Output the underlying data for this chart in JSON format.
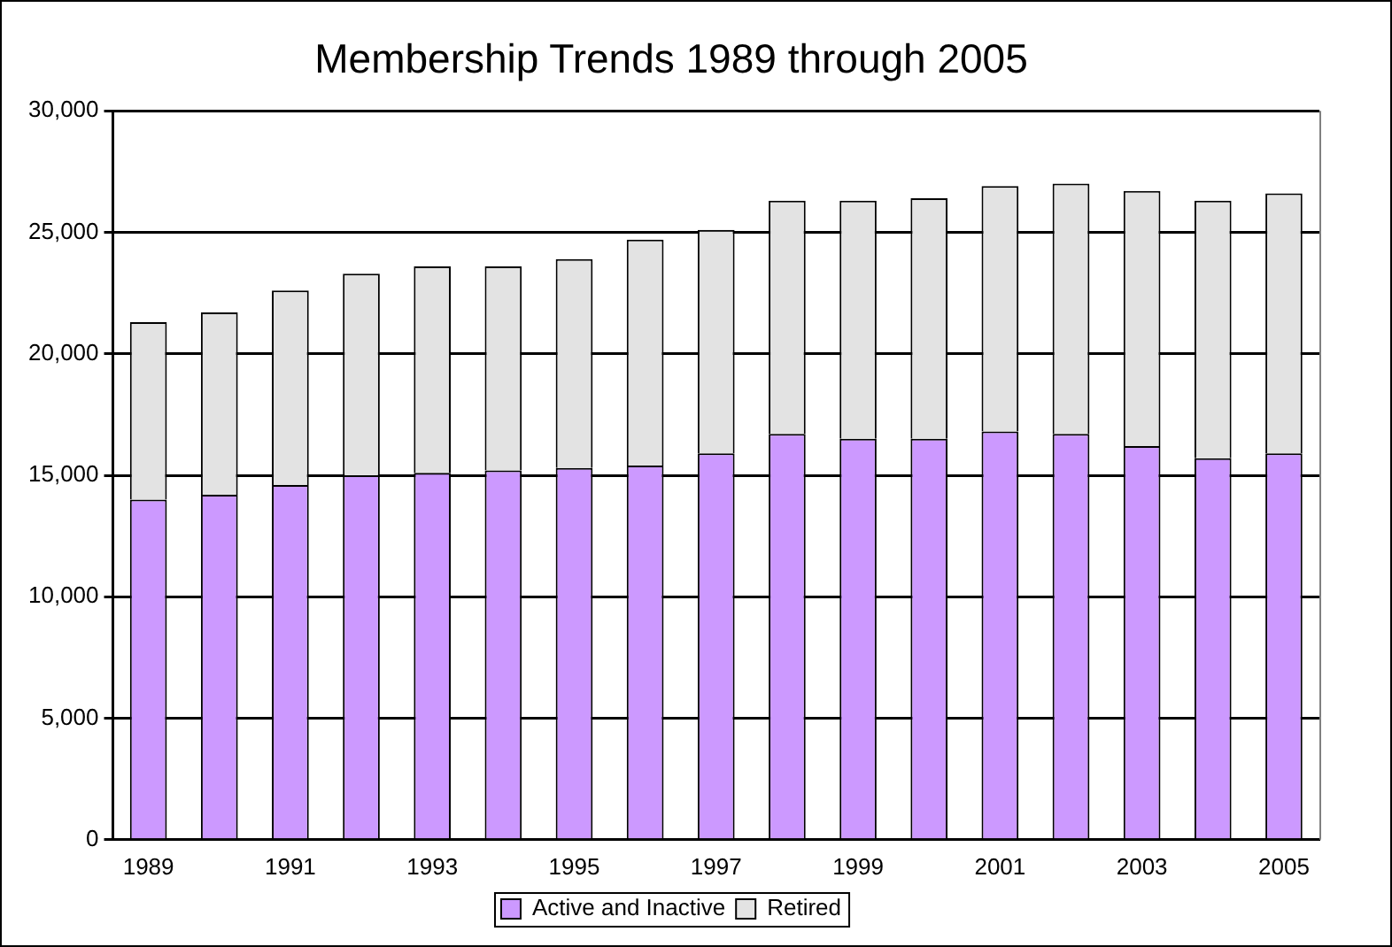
{
  "chart_data": {
    "type": "bar",
    "title": "Membership Trends 1989 through 2005",
    "stacked": true,
    "categories": [
      "1989",
      null,
      "1991",
      null,
      "1993",
      null,
      "1995",
      null,
      "1997",
      null,
      "1999",
      null,
      "2001",
      null,
      "2003",
      null,
      "2005"
    ],
    "series": [
      {
        "name": "Active and Inactive",
        "color": "#cc99ff",
        "values": [
          14000,
          14200,
          14600,
          15000,
          15100,
          15200,
          15300,
          15400,
          15900,
          16700,
          16500,
          16500,
          16800,
          16700,
          16200,
          15700,
          15900
        ]
      },
      {
        "name": "Retired",
        "color": "#e3e3e3",
        "values": [
          7300,
          7500,
          8000,
          8300,
          8500,
          8400,
          8600,
          9300,
          9200,
          9600,
          9800,
          9900,
          10100,
          10300,
          10500,
          10600,
          10700
        ]
      }
    ],
    "ylim": [
      0,
      30000
    ],
    "yticks": [
      {
        "value": 0,
        "label": "0"
      },
      {
        "value": 5000,
        "label": "5,000"
      },
      {
        "value": 10000,
        "label": "10,000"
      },
      {
        "value": 15000,
        "label": "15,000"
      },
      {
        "value": 20000,
        "label": "20,000"
      },
      {
        "value": 25000,
        "label": "25,000"
      },
      {
        "value": 30000,
        "label": "30,000"
      }
    ],
    "grid": "y",
    "legend": "bottom"
  }
}
